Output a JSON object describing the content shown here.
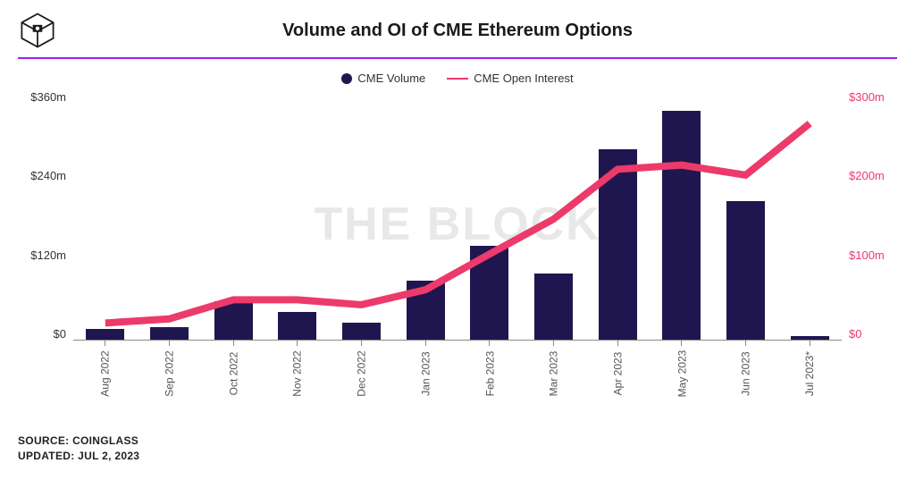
{
  "title": "Volume and OI of CME Ethereum Options",
  "divider_color": "#a020f0",
  "watermark": "THE BLOCK",
  "legend": {
    "bar_label": "CME Volume",
    "line_label": "CME Open Interest"
  },
  "chart": {
    "type": "bar+line",
    "categories": [
      "Aug 2022",
      "Sep 2022",
      "Oct 2022",
      "Nov 2022",
      "Dec 2022",
      "Jan 2023",
      "Feb 2023",
      "Mar 2023",
      "Apr 2023",
      "May 2023",
      "Jun 2023",
      "Jul 2023*"
    ],
    "bar_values": [
      15,
      18,
      55,
      40,
      25,
      85,
      135,
      95,
      275,
      330,
      200,
      5
    ],
    "bar_color": "#20164f",
    "line_values": [
      20,
      25,
      48,
      48,
      42,
      60,
      103,
      145,
      205,
      210,
      198,
      260
    ],
    "line_color": "#ec3a6a",
    "y_left": {
      "ticks": [
        "$360m",
        "$240m",
        "$120m",
        "$0"
      ],
      "min": 0,
      "max": 360,
      "color": "#333333"
    },
    "y_right": {
      "ticks": [
        "$300m",
        "$200m",
        "$100m",
        "$0"
      ],
      "min": 0,
      "max": 300,
      "color": "#ec3a6a"
    },
    "background_color": "#ffffff",
    "axis_color": "#888888"
  },
  "footer": {
    "source_label": "SOURCE: COINGLASS",
    "updated_label": "UPDATED: JUL 2, 2023"
  }
}
